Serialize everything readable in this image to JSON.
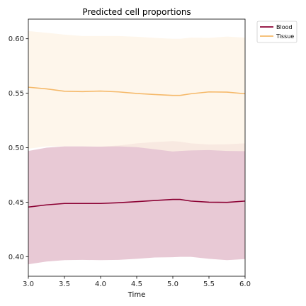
{
  "chart_data": {
    "type": "line",
    "title": "Predicted cell proportions",
    "xlabel": "Time",
    "ylabel": "",
    "xlim": [
      3.0,
      6.0
    ],
    "ylim": [
      0.382,
      0.618
    ],
    "xticks": [
      "3.0",
      "3.5",
      "4.0",
      "4.5",
      "5.0",
      "5.5",
      "6.0"
    ],
    "xtick_values": [
      3.0,
      3.5,
      4.0,
      4.5,
      5.0,
      5.5,
      6.0
    ],
    "yticks": [
      "0.40",
      "0.45",
      "0.50",
      "0.55",
      "0.60"
    ],
    "ytick_values": [
      0.4,
      0.45,
      0.5,
      0.55,
      0.6
    ],
    "grid": false,
    "legend_position": "outside-top-right",
    "x": [
      3.0,
      3.25,
      3.5,
      3.75,
      4.0,
      4.25,
      4.5,
      4.75,
      5.0,
      5.1,
      5.25,
      5.5,
      5.75,
      6.0
    ],
    "series": [
      {
        "name": "Blood",
        "color": "#8b0033",
        "band_color": "#e8c9d5",
        "values": [
          0.4455,
          0.4475,
          0.4488,
          0.4488,
          0.4488,
          0.4495,
          0.4505,
          0.4515,
          0.4525,
          0.4525,
          0.451,
          0.45,
          0.4498,
          0.451
        ],
        "lower": [
          0.393,
          0.3955,
          0.3968,
          0.397,
          0.3968,
          0.397,
          0.398,
          0.3992,
          0.3995,
          0.3998,
          0.3998,
          0.398,
          0.3968,
          0.3978
        ],
        "upper": [
          0.497,
          0.5,
          0.5012,
          0.5012,
          0.501,
          0.502,
          0.504,
          0.5052,
          0.506,
          0.5055,
          0.504,
          0.503,
          0.5032,
          0.504
        ]
      },
      {
        "name": "Tissue",
        "color": "#f5b96a",
        "band_color": "#fdf3e4",
        "values": [
          0.5555,
          0.554,
          0.5518,
          0.5515,
          0.552,
          0.5512,
          0.5498,
          0.5488,
          0.548,
          0.548,
          0.5495,
          0.5512,
          0.551,
          0.5495
        ],
        "lower": [
          0.499,
          0.5012,
          0.5012,
          0.5012,
          0.501,
          0.5012,
          0.5005,
          0.4985,
          0.4965,
          0.497,
          0.4975,
          0.4978,
          0.497,
          0.4968
        ],
        "upper": [
          0.607,
          0.6055,
          0.6038,
          0.6025,
          0.6025,
          0.6025,
          0.6018,
          0.6008,
          0.6,
          0.6,
          0.601,
          0.6008,
          0.602,
          0.601
        ]
      }
    ]
  }
}
